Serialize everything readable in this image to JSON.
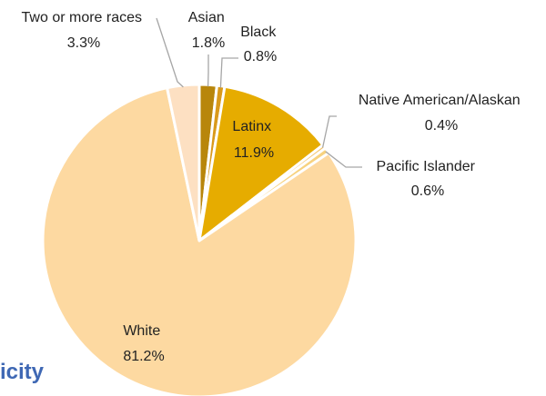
{
  "heading_fragment": "icity",
  "chart_data": {
    "type": "pie",
    "slices": [
      {
        "label": "Asian",
        "value": 1.8,
        "value_label": "1.8%",
        "color": "#b8860b"
      },
      {
        "label": "Black",
        "value": 0.8,
        "value_label": "0.8%",
        "color": "#d99a1b"
      },
      {
        "label": "Latinx",
        "value": 11.9,
        "value_label": "11.9%",
        "color": "#e6ac00"
      },
      {
        "label": "Native American/Alaskan",
        "value": 0.4,
        "value_label": "0.4%",
        "color": "#f4c46a"
      },
      {
        "label": "Pacific Islander",
        "value": 0.6,
        "value_label": "0.6%",
        "color": "#f7d27f"
      },
      {
        "label": "White",
        "value": 81.2,
        "value_label": "81.2%",
        "color": "#fdd9a1"
      },
      {
        "label": "Two or more races",
        "value": 3.3,
        "value_label": "3.3%",
        "color": "#fde0c2"
      }
    ],
    "start_angle_deg": 0,
    "direction": "clockwise"
  }
}
